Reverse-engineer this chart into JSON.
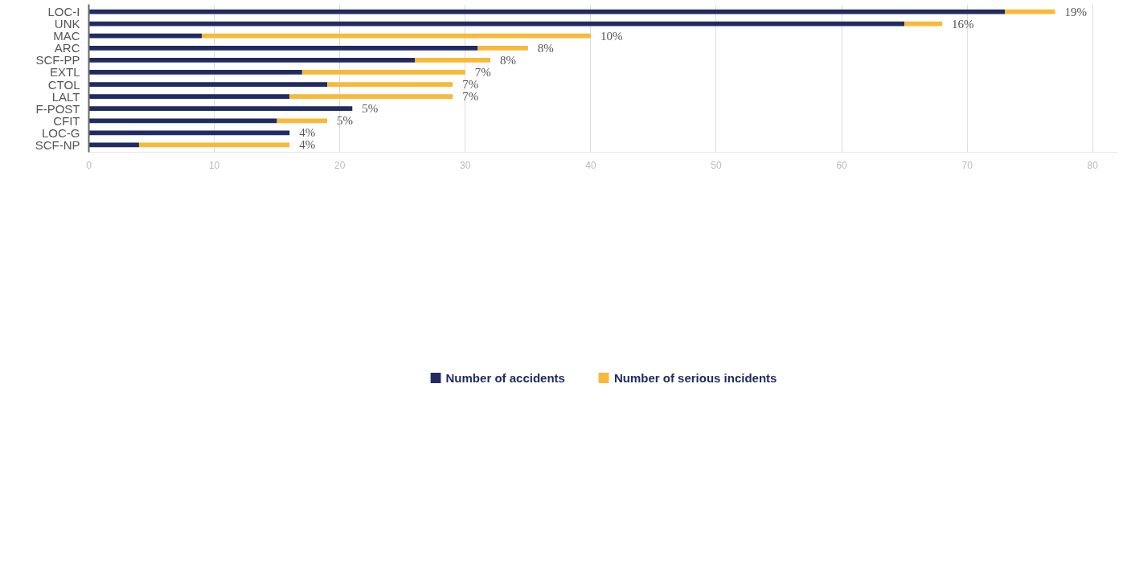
{
  "chart_data": {
    "type": "bar",
    "orientation": "horizontal",
    "stacked": true,
    "categories": [
      "LOC-I",
      "UNK",
      "MAC",
      "ARC",
      "SCF-PP",
      "EXTL",
      "CTOL",
      "LALT",
      "F-POST",
      "CFIT",
      "LOC-G",
      "SCF-NP"
    ],
    "series": [
      {
        "name": "Number of accidents",
        "color": "#212b62",
        "values": [
          73,
          65,
          9,
          31,
          26,
          17,
          19,
          16,
          21,
          15,
          16,
          4
        ]
      },
      {
        "name": "Number of serious incidents",
        "color": "#f8b939",
        "values": [
          4,
          3,
          31,
          4,
          6,
          13,
          10,
          13,
          0,
          4,
          0,
          12
        ]
      }
    ],
    "xlim": [
      0,
      82
    ],
    "xticks": [
      0,
      10,
      20,
      30,
      40,
      50,
      60,
      70,
      80
    ],
    "grid": "x",
    "legend": "bottom",
    "annotations": [
      {
        "text": "19%",
        "x": 77,
        "y": "LOC-I"
      },
      {
        "text": "16%",
        "x": 68,
        "y": "UNK"
      },
      {
        "text": "10%",
        "x": 40,
        "y": "MAC"
      },
      {
        "text": "8%",
        "x": 35,
        "y": "ARC"
      },
      {
        "text": "8%",
        "x": 32,
        "y": "SCF-PP"
      },
      {
        "text": "7%",
        "x": 30,
        "y": "EXTL"
      },
      {
        "text": "7%",
        "x": 29,
        "y": "CTOL"
      },
      {
        "text": "7%",
        "x": 29,
        "y": "LALT"
      },
      {
        "text": "5%",
        "x": 21,
        "y": "F-POST"
      },
      {
        "text": "5%",
        "x": 19,
        "y": "CFIT"
      },
      {
        "text": "4%",
        "x": 16,
        "y": "LOC-G"
      },
      {
        "text": "4%",
        "x": 16,
        "y": "SCF-NP"
      }
    ]
  }
}
